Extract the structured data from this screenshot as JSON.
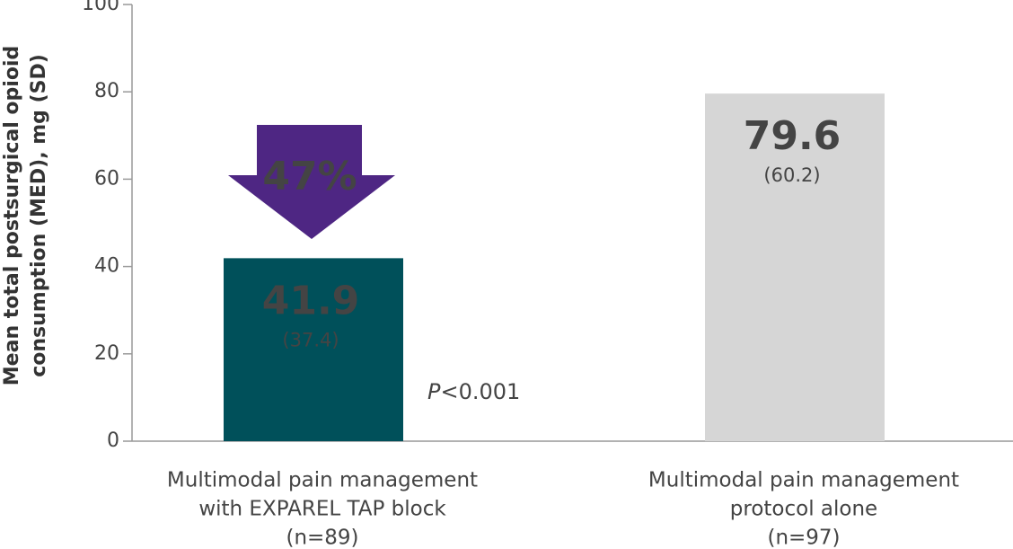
{
  "chart_data": {
    "type": "bar",
    "y_label": [
      "Mean total postsurgical opioid",
      "consumption (MED), mg (SD)"
    ],
    "categories": [
      [
        "Multimodal pain management",
        "with EXPAREL TAP block",
        "(n=89)"
      ],
      [
        "Multimodal pain management",
        "protocol alone",
        "(n=97)"
      ]
    ],
    "values": [
      41.9,
      79.6
    ],
    "errors": [
      37.4,
      60.2
    ],
    "error_labels": [
      "(37.4)",
      "(60.2)"
    ],
    "colors": [
      "#00505a",
      "#d6d6d6"
    ],
    "ylim": [
      0,
      100
    ],
    "yticks": [
      0,
      20,
      40,
      60,
      80,
      100
    ],
    "arrow_annotation": {
      "text": "47%",
      "color": "#4e2683"
    },
    "p_annotation": {
      "italic": "P",
      "text": "<0.001"
    }
  }
}
